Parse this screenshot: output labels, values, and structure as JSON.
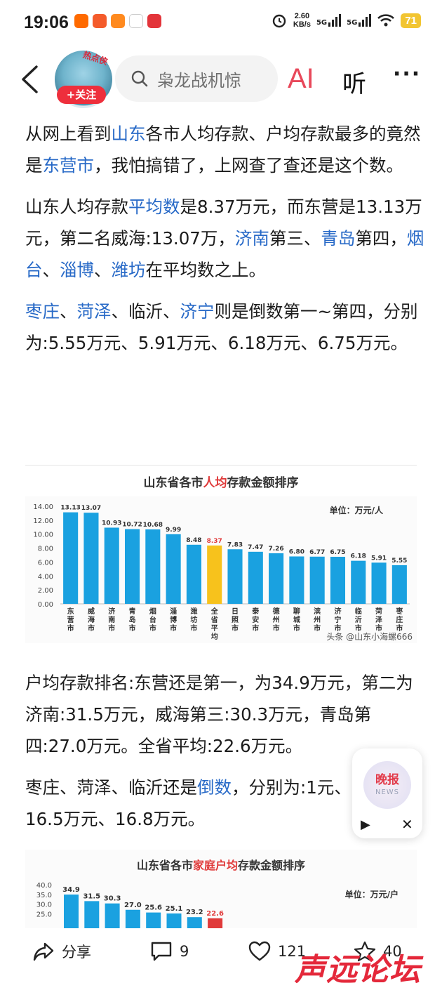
{
  "status_bar": {
    "time": "19:06",
    "net_speed_value": "2.60",
    "net_speed_unit": "KB/s",
    "sim1": "5G",
    "sim2": "5G",
    "battery": "71"
  },
  "header": {
    "avatar_tag": "热点侠",
    "follow_label": "+关注",
    "search_placeholder": "枭龙战机惊",
    "ai_label": "AI",
    "listen_label": "听",
    "more_label": "···"
  },
  "article": {
    "p1": [
      {
        "t": "从网上看到"
      },
      {
        "t": "山东",
        "link": true
      },
      {
        "t": "各市人均存款、户均存款最多的竟然是"
      },
      {
        "t": "东营市",
        "link": true
      },
      {
        "t": "，我怕搞错了，上网查了查还是这个数。"
      }
    ],
    "p2": [
      {
        "t": "山东人均存款"
      },
      {
        "t": "平均数",
        "link": true
      },
      {
        "t": "是8.37万元，而东营是13.13万元，第二名威海:13.07万，"
      },
      {
        "t": "济南",
        "link": true
      },
      {
        "t": "第三、"
      },
      {
        "t": "青岛",
        "link": true
      },
      {
        "t": "第四，"
      },
      {
        "t": "烟台",
        "link": true
      },
      {
        "t": "、"
      },
      {
        "t": "淄博",
        "link": true
      },
      {
        "t": "、"
      },
      {
        "t": "潍坊",
        "link": true
      },
      {
        "t": "在平均数之上。"
      }
    ],
    "p3": [
      {
        "t": "枣庄",
        "link": true
      },
      {
        "t": "、"
      },
      {
        "t": "菏泽",
        "link": true
      },
      {
        "t": "、临沂、"
      },
      {
        "t": "济宁",
        "link": true
      },
      {
        "t": "则是倒数第一~第四，分别为:5.55万元、5.91万元、6.18万元、6.75万元。"
      }
    ],
    "p4": [
      {
        "t": "户均存款排名:东营还是第一，为34.9万元，第二为济南:31.5万元，威海第三:30.3万元，青岛第四:27.0万元。全省平均:22.6万元。"
      }
    ],
    "p5": [
      {
        "t": "枣庄、菏泽、临沂还是"
      },
      {
        "t": "倒数",
        "link": true
      },
      {
        "t": "，分别为:1"
      },
      {
        "t": "元、16.5万元、16.8万元。"
      }
    ]
  },
  "chart_data": [
    {
      "type": "bar",
      "title_parts": [
        "山东省各市",
        "人均",
        "存款金额排序"
      ],
      "unit_label": "单位：万元/人",
      "categories": [
        "东营市",
        "威海市",
        "济南市",
        "青岛市",
        "烟台市",
        "淄博市",
        "潍坊市",
        "全省平均",
        "日照市",
        "泰安市",
        "德州市",
        "聊城市",
        "滨州市",
        "济宁市",
        "临沂市",
        "菏泽市",
        "枣庄市"
      ],
      "values": [
        13.13,
        13.07,
        10.93,
        10.72,
        10.68,
        9.99,
        8.48,
        8.37,
        7.83,
        7.47,
        7.26,
        6.8,
        6.77,
        6.75,
        6.18,
        5.91,
        5.55
      ],
      "highlight_index": 7,
      "colors": {
        "bar": "#1aa1e0",
        "highlight": "#f7c21c",
        "title_highlight": "#e03a3a"
      },
      "yticks": [
        "14.00",
        "12.00",
        "10.00",
        "8.00",
        "6.00",
        "4.00",
        "2.00",
        "0.00"
      ],
      "ylim": [
        0,
        14
      ],
      "watermark": "头条 @山东小海螺666"
    },
    {
      "type": "bar",
      "title_parts": [
        "山东省各市",
        "家庭户均",
        "存款金额排序"
      ],
      "unit_label": "单位：万元/户",
      "values_visible": [
        34.9,
        31.5,
        30.3,
        27.0,
        25.6,
        25.1,
        23.2,
        22.6
      ],
      "yticks": [
        "40.0",
        "35.0",
        "30.0",
        "25.0"
      ],
      "ylim": [
        0,
        40
      ],
      "colors": {
        "bar": "#1aa1e0",
        "highlight": "#e03a3a"
      }
    }
  ],
  "float_news": {
    "title": "晚报",
    "subtitle": "NEWS"
  },
  "bottom_bar": {
    "share_label": "分享",
    "comment_count": "9",
    "like_count": "121",
    "fav_count": "40"
  },
  "watermark_text": "声远论坛"
}
